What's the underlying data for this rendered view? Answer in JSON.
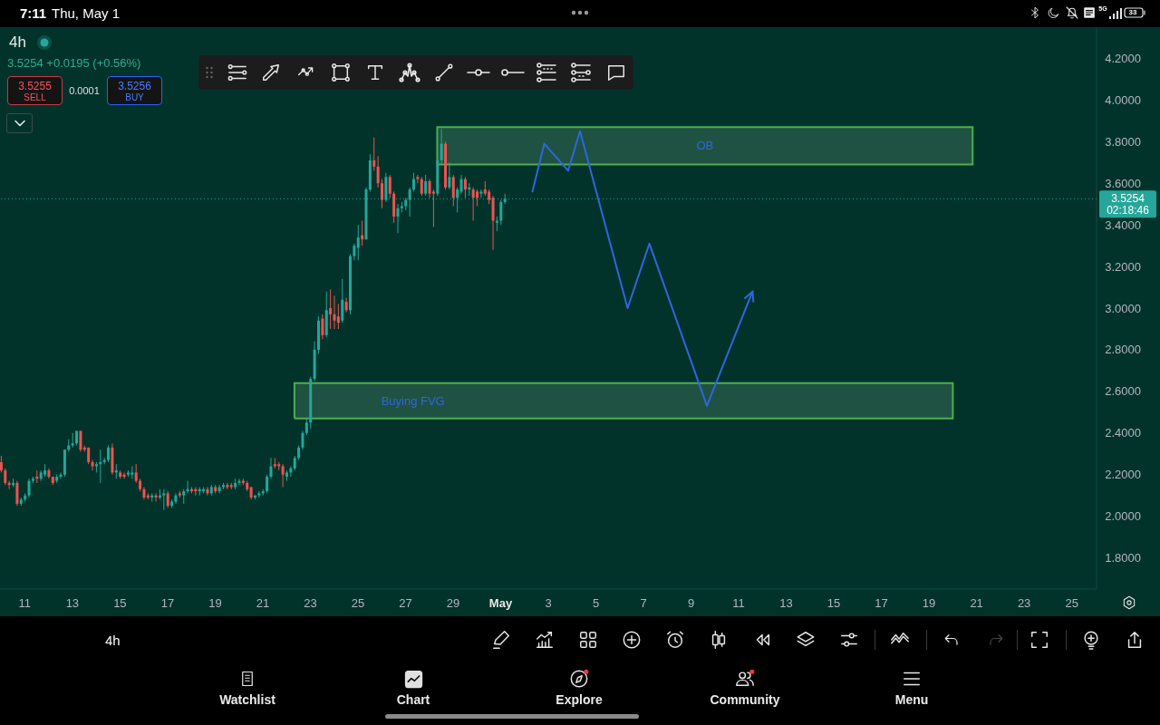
{
  "chart_data": {
    "type": "candlestick",
    "title": "4h",
    "subtitle": "3.5254 +0.0195 (+0.56%)",
    "x": [
      "--04-10T00:00",
      "--04-10T04:00",
      "--04-10T08:00",
      "--04-10T12:00",
      "--04-10T16:00",
      "--04-10T20:00",
      "--04-11T00:00",
      "--04-11T04:00",
      "--04-11T08:00",
      "--04-11T12:00",
      "--04-11T16:00",
      "--04-11T20:00",
      "--04-12T00:00",
      "--04-12T04:00",
      "--04-12T08:00",
      "--04-12T12:00",
      "--04-12T16:00",
      "--04-12T20:00",
      "--04-13T00:00",
      "--04-13T04:00",
      "--04-13T08:00",
      "--04-13T12:00",
      "--04-13T16:00",
      "--04-13T20:00",
      "--04-14T00:00",
      "--04-14T04:00",
      "--04-14T08:00",
      "--04-14T12:00",
      "--04-14T16:00",
      "--04-14T20:00",
      "--04-15T00:00",
      "--04-15T04:00",
      "--04-15T08:00",
      "--04-15T12:00",
      "--04-15T16:00",
      "--04-15T20:00",
      "--04-16T00:00",
      "--04-16T04:00",
      "--04-16T08:00",
      "--04-16T12:00",
      "--04-16T16:00",
      "--04-16T20:00",
      "--04-17T00:00",
      "--04-17T04:00",
      "--04-17T08:00",
      "--04-17T12:00",
      "--04-17T16:00",
      "--04-17T20:00",
      "--04-18T00:00",
      "--04-18T04:00",
      "--04-18T08:00",
      "--04-18T12:00",
      "--04-18T16:00",
      "--04-18T20:00",
      "--04-19T00:00",
      "--04-19T04:00",
      "--04-19T08:00",
      "--04-19T12:00",
      "--04-19T16:00",
      "--04-19T20:00",
      "--04-20T00:00",
      "--04-20T04:00",
      "--04-20T08:00",
      "--04-20T12:00",
      "--04-20T16:00",
      "--04-20T20:00",
      "--04-21T00:00",
      "--04-21T04:00",
      "--04-21T08:00",
      "--04-21T12:00",
      "--04-21T16:00",
      "--04-21T20:00",
      "--04-22T00:00",
      "--04-22T04:00",
      "--04-22T08:00",
      "--04-22T12:00",
      "--04-22T16:00",
      "--04-22T20:00",
      "--04-23T00:00",
      "--04-23T04:00",
      "--04-23T08:00",
      "--04-23T12:00",
      "--04-23T16:00",
      "--04-23T20:00",
      "--04-24T00:00",
      "--04-24T04:00",
      "--04-24T08:00",
      "--04-24T12:00",
      "--04-24T16:00",
      "--04-24T20:00",
      "--04-25T00:00",
      "--04-25T04:00",
      "--04-25T08:00",
      "--04-25T12:00",
      "--04-25T16:00",
      "--04-25T20:00",
      "--04-26T00:00",
      "--04-26T04:00",
      "--04-26T08:00",
      "--04-26T12:00",
      "--04-26T16:00",
      "--04-26T20:00",
      "--04-27T00:00",
      "--04-27T04:00",
      "--04-27T08:00",
      "--04-27T12:00",
      "--04-27T16:00",
      "--04-27T20:00",
      "--04-28T00:00",
      "--04-28T04:00",
      "--04-28T08:00",
      "--04-28T12:00",
      "--04-28T16:00",
      "--04-28T20:00",
      "--04-29T00:00",
      "--04-29T04:00",
      "--04-29T08:00",
      "--04-29T12:00",
      "--04-29T16:00",
      "--04-29T20:00",
      "--04-30T00:00",
      "--04-30T04:00",
      "--04-30T08:00",
      "--04-30T12:00",
      "--04-30T16:00",
      "--04-30T20:00",
      "--05-01T00:00",
      "--05-01T04:00"
    ],
    "ohlc": [
      [
        2.26,
        2.29,
        2.21,
        2.22
      ],
      [
        2.22,
        2.23,
        2.15,
        2.16
      ],
      [
        2.16,
        2.17,
        2.13,
        2.15
      ],
      [
        2.15,
        2.18,
        2.14,
        2.16
      ],
      [
        2.16,
        2.17,
        2.05,
        2.06
      ],
      [
        2.06,
        2.09,
        2.05,
        2.08
      ],
      [
        2.08,
        2.11,
        2.07,
        2.1
      ],
      [
        2.1,
        2.18,
        2.09,
        2.17
      ],
      [
        2.17,
        2.19,
        2.16,
        2.18
      ],
      [
        2.19,
        2.22,
        2.16,
        2.18
      ],
      [
        2.18,
        2.22,
        2.17,
        2.21
      ],
      [
        2.2,
        2.25,
        2.19,
        2.22
      ],
      [
        2.22,
        2.23,
        2.18,
        2.19
      ],
      [
        2.19,
        2.19,
        2.15,
        2.16
      ],
      [
        2.17,
        2.2,
        2.16,
        2.19
      ],
      [
        2.19,
        2.21,
        2.18,
        2.2
      ],
      [
        2.2,
        2.32,
        2.19,
        2.32
      ],
      [
        2.32,
        2.37,
        2.31,
        2.34
      ],
      [
        2.34,
        2.4,
        2.33,
        2.35
      ],
      [
        2.35,
        2.41,
        2.34,
        2.41
      ],
      [
        2.41,
        2.41,
        2.31,
        2.32
      ],
      [
        2.33,
        2.34,
        2.31,
        2.32
      ],
      [
        2.33,
        2.33,
        2.25,
        2.26
      ],
      [
        2.26,
        2.27,
        2.22,
        2.24
      ],
      [
        2.24,
        2.26,
        2.21,
        2.25
      ],
      [
        2.25,
        2.32,
        2.16,
        2.26
      ],
      [
        2.26,
        2.28,
        2.25,
        2.27
      ],
      [
        2.27,
        2.34,
        2.26,
        2.33
      ],
      [
        2.33,
        2.35,
        2.2,
        2.21
      ],
      [
        2.21,
        2.25,
        2.18,
        2.22
      ],
      [
        2.21,
        2.22,
        2.18,
        2.19
      ],
      [
        2.2,
        2.21,
        2.18,
        2.19
      ],
      [
        2.2,
        2.22,
        2.19,
        2.21
      ],
      [
        2.2,
        2.24,
        2.18,
        2.21
      ],
      [
        2.21,
        2.25,
        2.16,
        2.17
      ],
      [
        2.17,
        2.18,
        2.12,
        2.13
      ],
      [
        2.13,
        2.14,
        2.08,
        2.09
      ],
      [
        2.1,
        2.11,
        2.08,
        2.09
      ],
      [
        2.09,
        2.11,
        2.07,
        2.1
      ],
      [
        2.1,
        2.11,
        2.07,
        2.09
      ],
      [
        2.09,
        2.13,
        2.08,
        2.1
      ],
      [
        2.1,
        2.13,
        2.03,
        2.11
      ],
      [
        2.11,
        2.12,
        2.04,
        2.05
      ],
      [
        2.05,
        2.08,
        2.04,
        2.07
      ],
      [
        2.07,
        2.11,
        2.06,
        2.1
      ],
      [
        2.11,
        2.12,
        2.09,
        2.1
      ],
      [
        2.1,
        2.13,
        2.06,
        2.12
      ],
      [
        2.12,
        2.17,
        2.11,
        2.13
      ],
      [
        2.13,
        2.14,
        2.11,
        2.12
      ],
      [
        2.13,
        2.14,
        2.1,
        2.12
      ],
      [
        2.12,
        2.14,
        2.1,
        2.13
      ],
      [
        2.12,
        2.14,
        2.11,
        2.13
      ],
      [
        2.13,
        2.14,
        2.1,
        2.11
      ],
      [
        2.11,
        2.15,
        2.1,
        2.14
      ],
      [
        2.14,
        2.15,
        2.11,
        2.12
      ],
      [
        2.12,
        2.15,
        2.11,
        2.14
      ],
      [
        2.14,
        2.16,
        2.13,
        2.15
      ],
      [
        2.15,
        2.16,
        2.13,
        2.14
      ],
      [
        2.15,
        2.16,
        2.13,
        2.14
      ],
      [
        2.14,
        2.18,
        2.13,
        2.16
      ],
      [
        2.16,
        2.18,
        2.15,
        2.17
      ],
      [
        2.17,
        2.18,
        2.15,
        2.16
      ],
      [
        2.16,
        2.17,
        2.12,
        2.13
      ],
      [
        2.14,
        2.14,
        2.08,
        2.09
      ],
      [
        2.09,
        2.1,
        2.08,
        2.1
      ],
      [
        2.1,
        2.12,
        2.09,
        2.11
      ],
      [
        2.11,
        2.13,
        2.1,
        2.12
      ],
      [
        2.12,
        2.2,
        2.11,
        2.19
      ],
      [
        2.19,
        2.28,
        2.18,
        2.24
      ],
      [
        2.25,
        2.28,
        2.23,
        2.24
      ],
      [
        2.25,
        2.26,
        2.22,
        2.24
      ],
      [
        2.24,
        2.25,
        2.14,
        2.2
      ],
      [
        2.19,
        2.22,
        2.17,
        2.21
      ],
      [
        2.21,
        2.24,
        2.19,
        2.23
      ],
      [
        2.23,
        2.29,
        2.22,
        2.28
      ],
      [
        2.28,
        2.34,
        2.27,
        2.33
      ],
      [
        2.33,
        2.41,
        2.32,
        2.4
      ],
      [
        2.4,
        2.47,
        2.39,
        2.45
      ],
      [
        2.45,
        2.67,
        2.42,
        2.66
      ],
      [
        2.66,
        2.84,
        2.65,
        2.8
      ],
      [
        2.8,
        2.96,
        2.78,
        2.94
      ],
      [
        2.95,
        2.97,
        2.85,
        2.87
      ],
      [
        2.87,
        3.08,
        2.86,
        2.99
      ],
      [
        3.0,
        3.09,
        2.9,
        2.97
      ],
      [
        2.97,
        3.06,
        2.9,
        2.94
      ],
      [
        2.96,
        3.02,
        2.9,
        2.93
      ],
      [
        2.94,
        3.14,
        2.93,
        3.04
      ],
      [
        3.03,
        3.05,
        2.98,
        2.99
      ],
      [
        2.99,
        3.26,
        2.97,
        3.25
      ],
      [
        3.25,
        3.31,
        3.23,
        3.3
      ],
      [
        3.29,
        3.4,
        3.23,
        3.34
      ],
      [
        3.35,
        3.42,
        3.3,
        3.33
      ],
      [
        3.33,
        3.58,
        3.33,
        3.57
      ],
      [
        3.57,
        3.74,
        3.56,
        3.71
      ],
      [
        3.71,
        3.82,
        3.66,
        3.68
      ],
      [
        3.68,
        3.73,
        3.58,
        3.6
      ],
      [
        3.6,
        3.62,
        3.48,
        3.52
      ],
      [
        3.52,
        3.65,
        3.51,
        3.63
      ],
      [
        3.63,
        3.64,
        3.53,
        3.55
      ],
      [
        3.55,
        3.56,
        3.41,
        3.44
      ],
      [
        3.44,
        3.5,
        3.36,
        3.48
      ],
      [
        3.48,
        3.51,
        3.46,
        3.49
      ],
      [
        3.49,
        3.53,
        3.47,
        3.52
      ],
      [
        3.52,
        3.58,
        3.44,
        3.57
      ],
      [
        3.57,
        3.65,
        3.56,
        3.62
      ],
      [
        3.63,
        3.64,
        3.6,
        3.62
      ],
      [
        3.62,
        3.63,
        3.54,
        3.55
      ],
      [
        3.55,
        3.64,
        3.54,
        3.61
      ],
      [
        3.61,
        3.62,
        3.53,
        3.55
      ],
      [
        3.56,
        3.57,
        3.39,
        3.55
      ],
      [
        3.55,
        3.73,
        3.54,
        3.71
      ],
      [
        3.71,
        3.86,
        3.69,
        3.79
      ],
      [
        3.79,
        3.8,
        3.57,
        3.58
      ],
      [
        3.58,
        3.7,
        3.57,
        3.63
      ],
      [
        3.63,
        3.64,
        3.49,
        3.53
      ],
      [
        3.53,
        3.58,
        3.46,
        3.57
      ],
      [
        3.56,
        3.64,
        3.55,
        3.62
      ],
      [
        3.62,
        3.63,
        3.53,
        3.57
      ],
      [
        3.57,
        3.6,
        3.54,
        3.58
      ],
      [
        3.57,
        3.58,
        3.42,
        3.53
      ],
      [
        3.56,
        3.57,
        3.49,
        3.53
      ],
      [
        3.55,
        3.57,
        3.53,
        3.56
      ],
      [
        3.57,
        3.61,
        3.54,
        3.55
      ],
      [
        3.56,
        3.57,
        3.5,
        3.52
      ],
      [
        3.53,
        3.54,
        3.28,
        3.42
      ],
      [
        3.41,
        3.44,
        3.37,
        3.42
      ],
      [
        3.42,
        3.52,
        3.4,
        3.51
      ],
      [
        3.51,
        3.55,
        3.5,
        3.5254
      ]
    ],
    "colors": [
      "#ef5350",
      "#ef5350",
      "#ef5350",
      "#26a69a",
      "#ef5350",
      "#26a69a",
      "#26a69a",
      "#26a69a",
      "#26a69a",
      "#ef5350",
      "#26a69a",
      "#26a69a",
      "#ef5350",
      "#ef5350",
      "#26a69a",
      "#26a69a",
      "#26a69a",
      "#26a69a",
      "#26a69a",
      "#26a69a",
      "#ef5350",
      "#ef5350",
      "#ef5350",
      "#ef5350",
      "#26a69a",
      "#26a69a",
      "#26a69a",
      "#26a69a",
      "#ef5350",
      "#26a69a",
      "#ef5350",
      "#ef5350",
      "#26a69a",
      "#26a69a",
      "#ef5350",
      "#ef5350",
      "#ef5350",
      "#ef5350",
      "#26a69a",
      "#ef5350",
      "#26a69a",
      "#26a69a",
      "#ef5350",
      "#26a69a",
      "#26a69a",
      "#ef5350",
      "#26a69a",
      "#26a69a",
      "#ef5350",
      "#ef5350",
      "#26a69a",
      "#26a69a",
      "#ef5350",
      "#26a69a",
      "#ef5350",
      "#26a69a",
      "#26a69a",
      "#ef5350",
      "#ef5350",
      "#26a69a",
      "#26a69a",
      "#ef5350",
      "#ef5350",
      "#ef5350",
      "#26a69a",
      "#26a69a",
      "#26a69a",
      "#26a69a",
      "#26a69a",
      "#ef5350",
      "#ef5350",
      "#ef5350",
      "#26a69a",
      "#26a69a",
      "#26a69a",
      "#26a69a",
      "#26a69a",
      "#26a69a",
      "#26a69a",
      "#26a69a",
      "#26a69a",
      "#ef5350",
      "#26a69a",
      "#ef5350",
      "#ef5350",
      "#ef5350",
      "#26a69a",
      "#ef5350",
      "#26a69a",
      "#26a69a",
      "#26a69a",
      "#ef5350",
      "#26a69a",
      "#26a69a",
      "#ef5350",
      "#ef5350",
      "#ef5350",
      "#26a69a",
      "#ef5350",
      "#ef5350",
      "#26a69a",
      "#26a69a",
      "#26a69a",
      "#26a69a",
      "#26a69a",
      "#ef5350",
      "#ef5350",
      "#26a69a",
      "#ef5350",
      "#ef5350",
      "#26a69a",
      "#26a69a",
      "#ef5350",
      "#26a69a",
      "#ef5350",
      "#26a69a",
      "#26a69a",
      "#ef5350",
      "#26a69a",
      "#ef5350",
      "#ef5350",
      "#26a69a",
      "#ef5350",
      "#ef5350",
      "#ef5350",
      "#26a69a",
      "#26a69a",
      "#26a69a"
    ],
    "series": [
      {
        "type": "line",
        "color": "#2f66e0",
        "x": [
          "--05-02T08:00",
          "--05-02T20:00",
          "--05-03T20:00",
          "--05-04T08:00",
          "--05-06T08:00",
          "--05-07T06:00",
          "--05-09T16:00",
          "--05-11T14:00"
        ],
        "values": [
          3.56,
          3.79,
          3.66,
          3.85,
          3.0,
          3.31,
          2.53,
          3.08
        ]
      },
      {
        "type": "area",
        "name": "OB",
        "color": "#4caf50",
        "x": [
          "--04-28T08:00",
          "--04-28T08:00",
          "--05-20T20:00",
          "--05-20T20:00",
          "--04-28T08:00"
        ],
        "values": [
          3.69,
          3.87,
          3.87,
          3.69,
          3.69
        ]
      },
      {
        "type": "area",
        "name": "Buying FVG",
        "color": "#4caf50",
        "x": [
          "--04-22T08:00",
          "--04-22T08:00",
          "--05-20T00:00",
          "--05-20T00:00",
          "--04-22T08:00"
        ],
        "values": [
          2.47,
          2.64,
          2.64,
          2.47,
          2.47
        ]
      }
    ],
    "ref_lines": [
      {
        "axis": "y",
        "value": 3.5254,
        "label": "3.5254",
        "color": "#26a69a",
        "line_style": "dotted"
      }
    ],
    "annotations": [
      "02:18:46",
      "3.5255",
      "SELL",
      "0.0001",
      "3.5256",
      "BUY",
      "7:11",
      "Thu, May 1",
      "5G",
      "33",
      "4h",
      "Watchlist",
      "Chart",
      "Explore",
      "Community",
      "Menu"
    ],
    "xlim": [
      "--04-09T23:00",
      "--05-26T01:00"
    ],
    "xticks": [
      {
        "value": "--04-11",
        "label": "11"
      },
      {
        "value": "--04-13",
        "label": "13"
      },
      {
        "value": "--04-15",
        "label": "15"
      },
      {
        "value": "--04-17",
        "label": "17"
      },
      {
        "value": "--04-19",
        "label": "19"
      },
      {
        "value": "--04-21",
        "label": "21"
      },
      {
        "value": "--04-23",
        "label": "23"
      },
      {
        "value": "--04-25",
        "label": "25"
      },
      {
        "value": "--04-27",
        "label": "27"
      },
      {
        "value": "--04-29",
        "label": "29"
      },
      {
        "value": "--05-01",
        "label": "May"
      },
      {
        "value": "--05-03",
        "label": "3"
      },
      {
        "value": "--05-05",
        "label": "5"
      },
      {
        "value": "--05-07",
        "label": "7"
      },
      {
        "value": "--05-09",
        "label": "9"
      },
      {
        "value": "--05-11",
        "label": "11"
      },
      {
        "value": "--05-13",
        "label": "13"
      },
      {
        "value": "--05-15",
        "label": "15"
      },
      {
        "value": "--05-17",
        "label": "17"
      },
      {
        "value": "--05-19",
        "label": "19"
      },
      {
        "value": "--05-21",
        "label": "21"
      },
      {
        "value": "--05-23",
        "label": "23"
      },
      {
        "value": "--05-25",
        "label": "25"
      }
    ],
    "ylim": [
      1.65,
      4.35
    ],
    "yticks": [
      {
        "value": 1.8,
        "label": "1.8000"
      },
      {
        "value": 2.0,
        "label": "2.0000"
      },
      {
        "value": 2.2,
        "label": "2.2000"
      },
      {
        "value": 2.4,
        "label": "2.4000"
      },
      {
        "value": 2.6,
        "label": "2.6000"
      },
      {
        "value": 2.8,
        "label": "2.8000"
      },
      {
        "value": 3.0,
        "label": "3.0000"
      },
      {
        "value": 3.2,
        "label": "3.2000"
      },
      {
        "value": 3.4,
        "label": "3.4000"
      },
      {
        "value": 3.6,
        "label": "3.6000"
      },
      {
        "value": 3.8,
        "label": "3.8000"
      },
      {
        "value": 4.0,
        "label": "4.0000"
      },
      {
        "value": 4.2,
        "label": "4.2000"
      }
    ]
  }
}
